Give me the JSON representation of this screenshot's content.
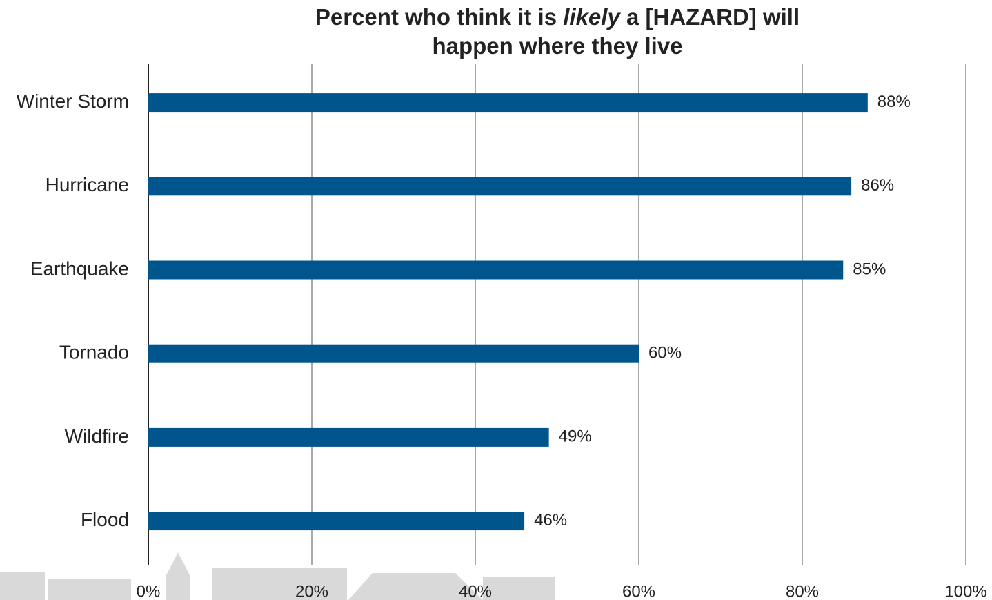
{
  "chart_data": {
    "type": "bar",
    "orientation": "horizontal",
    "title": [
      "Percent who think it is ",
      "likely",
      " a [HAZARD] will happen where they live"
    ],
    "categories": [
      "Winter Storm",
      "Hurricane",
      "Earthquake",
      "Tornado",
      "Wildfire",
      "Flood"
    ],
    "values": [
      88,
      86,
      85,
      60,
      49,
      46
    ],
    "value_labels": [
      "88%",
      "86%",
      "85%",
      "60%",
      "49%",
      "46%"
    ],
    "color": "#00558c",
    "xlim": [
      0,
      100
    ],
    "xticks": [
      {
        "value": 0,
        "label": "0%"
      },
      {
        "value": 20,
        "label": "20%"
      },
      {
        "value": 40,
        "label": "40%"
      },
      {
        "value": 60,
        "label": "60%"
      },
      {
        "value": 80,
        "label": "80%"
      },
      {
        "value": 100,
        "label": "100%"
      }
    ],
    "grid": true
  }
}
